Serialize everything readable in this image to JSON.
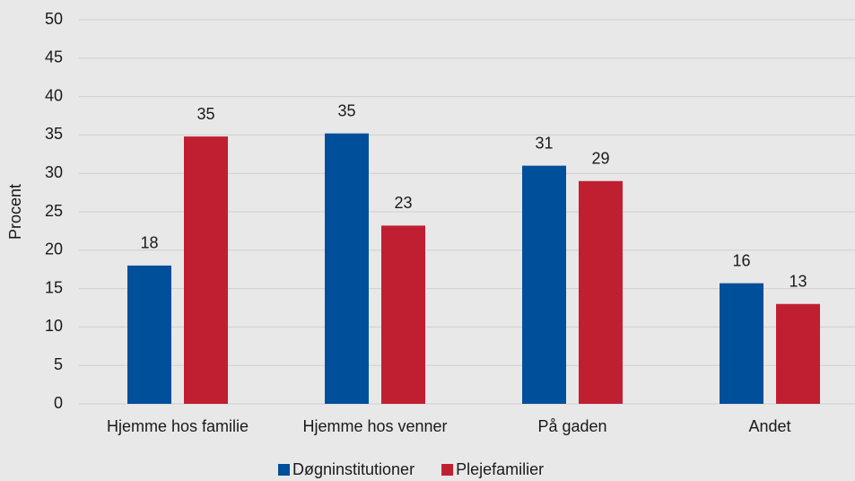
{
  "chart_data": {
    "type": "bar",
    "categories": [
      "Hjemme hos familie",
      "Hjemme hos venner",
      "På gaden",
      "Andet"
    ],
    "series": [
      {
        "name": "Døgninstitutioner",
        "color": "#004f9a",
        "values": [
          18,
          35.2,
          31,
          15.7
        ],
        "value_labels": [
          "18",
          "35",
          "31",
          "16"
        ]
      },
      {
        "name": "Plejefamilier",
        "color": "#c01f32",
        "values": [
          34.8,
          23.2,
          29,
          13
        ],
        "value_labels": [
          "35",
          "23",
          "29",
          "13"
        ]
      }
    ],
    "ylabel": "Procent",
    "ylim": [
      0,
      50
    ],
    "yticks": [
      0,
      5,
      10,
      15,
      20,
      25,
      30,
      35,
      40,
      45,
      50
    ],
    "grid": true,
    "legend": "bottom"
  }
}
